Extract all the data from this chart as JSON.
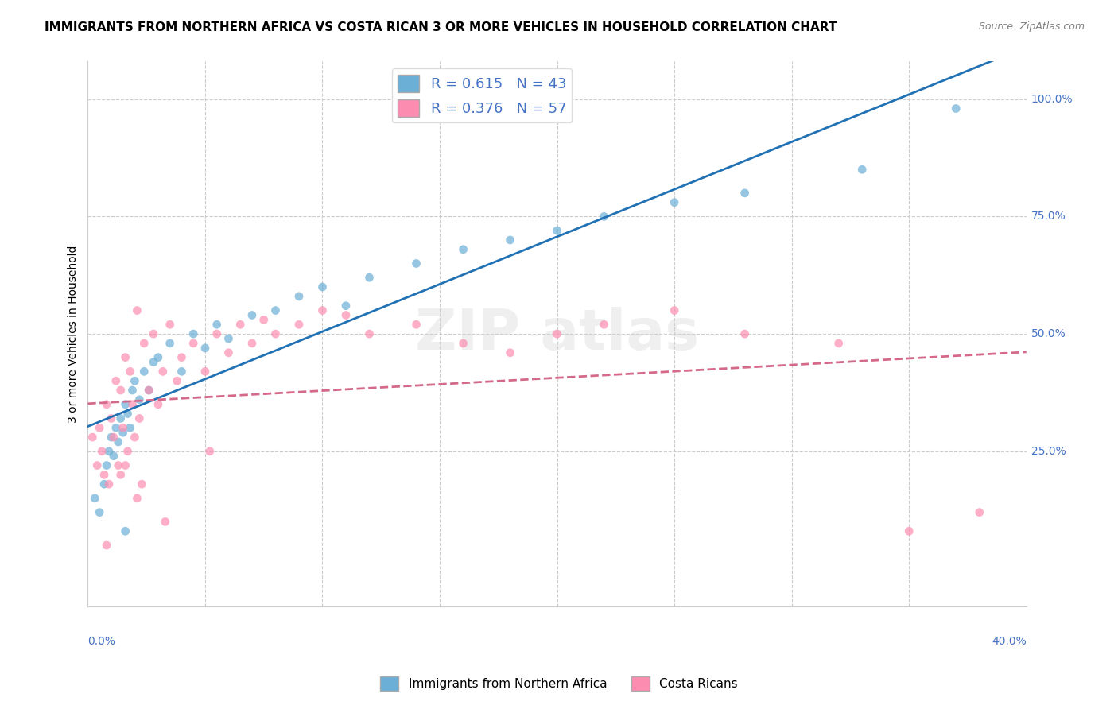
{
  "title": "IMMIGRANTS FROM NORTHERN AFRICA VS COSTA RICAN 3 OR MORE VEHICLES IN HOUSEHOLD CORRELATION CHART",
  "source": "Source: ZipAtlas.com",
  "xmin": 0.0,
  "xmax": 40.0,
  "ymin": -8.0,
  "ymax": 108.0,
  "blue_r": "0.615",
  "blue_n": "43",
  "pink_r": "0.376",
  "pink_n": "57",
  "blue_color": "#6baed6",
  "pink_color": "#fd8db0",
  "blue_line_color": "#2171b5",
  "pink_line_color": "#d4698a",
  "bottom_legend_blue": "Immigrants from Northern Africa",
  "bottom_legend_pink": "Costa Ricans",
  "blue_scatter_x": [
    0.3,
    0.5,
    0.7,
    0.8,
    0.9,
    1.0,
    1.1,
    1.2,
    1.3,
    1.4,
    1.5,
    1.6,
    1.7,
    1.8,
    1.9,
    2.0,
    2.2,
    2.4,
    2.6,
    2.8,
    3.0,
    3.5,
    4.0,
    4.5,
    5.0,
    5.5,
    6.0,
    7.0,
    8.0,
    9.0,
    10.0,
    11.0,
    12.0,
    14.0,
    16.0,
    18.0,
    20.0,
    22.0,
    25.0,
    28.0,
    33.0,
    37.0,
    1.6
  ],
  "blue_scatter_y": [
    15.0,
    12.0,
    18.0,
    22.0,
    25.0,
    28.0,
    24.0,
    30.0,
    27.0,
    32.0,
    29.0,
    35.0,
    33.0,
    30.0,
    38.0,
    40.0,
    36.0,
    42.0,
    38.0,
    44.0,
    45.0,
    48.0,
    42.0,
    50.0,
    47.0,
    52.0,
    49.0,
    54.0,
    55.0,
    58.0,
    60.0,
    56.0,
    62.0,
    65.0,
    68.0,
    70.0,
    72.0,
    75.0,
    78.0,
    80.0,
    85.0,
    98.0,
    8.0
  ],
  "pink_scatter_x": [
    0.2,
    0.4,
    0.5,
    0.6,
    0.7,
    0.8,
    0.9,
    1.0,
    1.1,
    1.2,
    1.3,
    1.4,
    1.5,
    1.6,
    1.7,
    1.8,
    1.9,
    2.0,
    2.1,
    2.2,
    2.4,
    2.6,
    2.8,
    3.0,
    3.2,
    3.5,
    3.8,
    4.0,
    4.5,
    5.0,
    5.5,
    6.0,
    6.5,
    7.0,
    7.5,
    8.0,
    9.0,
    10.0,
    11.0,
    12.0,
    14.0,
    16.0,
    18.0,
    20.0,
    22.0,
    25.0,
    28.0,
    32.0,
    35.0,
    38.0,
    2.3,
    1.6,
    2.1,
    0.8,
    1.4,
    3.3,
    5.2
  ],
  "pink_scatter_y": [
    28.0,
    22.0,
    30.0,
    25.0,
    20.0,
    35.0,
    18.0,
    32.0,
    28.0,
    40.0,
    22.0,
    38.0,
    30.0,
    45.0,
    25.0,
    42.0,
    35.0,
    28.0,
    55.0,
    32.0,
    48.0,
    38.0,
    50.0,
    35.0,
    42.0,
    52.0,
    40.0,
    45.0,
    48.0,
    42.0,
    50.0,
    46.0,
    52.0,
    48.0,
    53.0,
    50.0,
    52.0,
    55.0,
    54.0,
    50.0,
    52.0,
    48.0,
    46.0,
    50.0,
    52.0,
    55.0,
    50.0,
    48.0,
    8.0,
    12.0,
    18.0,
    22.0,
    15.0,
    5.0,
    20.0,
    10.0,
    25.0
  ],
  "background_color": "#ffffff",
  "grid_color": "#cccccc",
  "title_fontsize": 11,
  "tick_label_color": "#4472c4"
}
